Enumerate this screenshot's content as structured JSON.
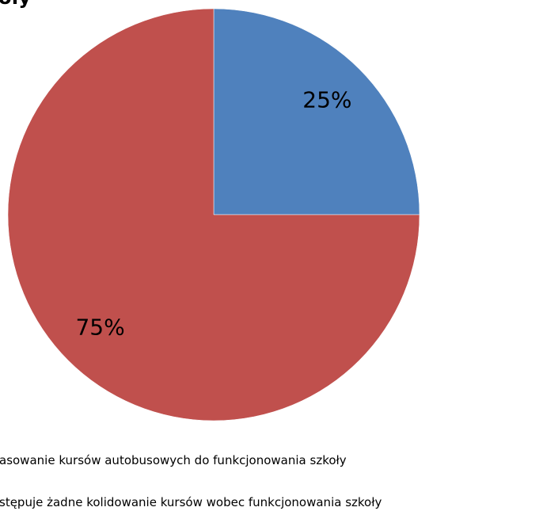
{
  "chart_data": {
    "type": "pie",
    "title": "oły",
    "series": [
      {
        "name": "asowanie kursów autobusowych do funkcjonowania szkoły",
        "color": "#4f81bd"
      },
      {
        "name": "stępuje żadne kolidowanie kursów wobec funkcjonowania szkoły",
        "color": "#c0504d"
      }
    ],
    "values": [
      25,
      75
    ],
    "value_labels": [
      "25%",
      "75%"
    ]
  }
}
